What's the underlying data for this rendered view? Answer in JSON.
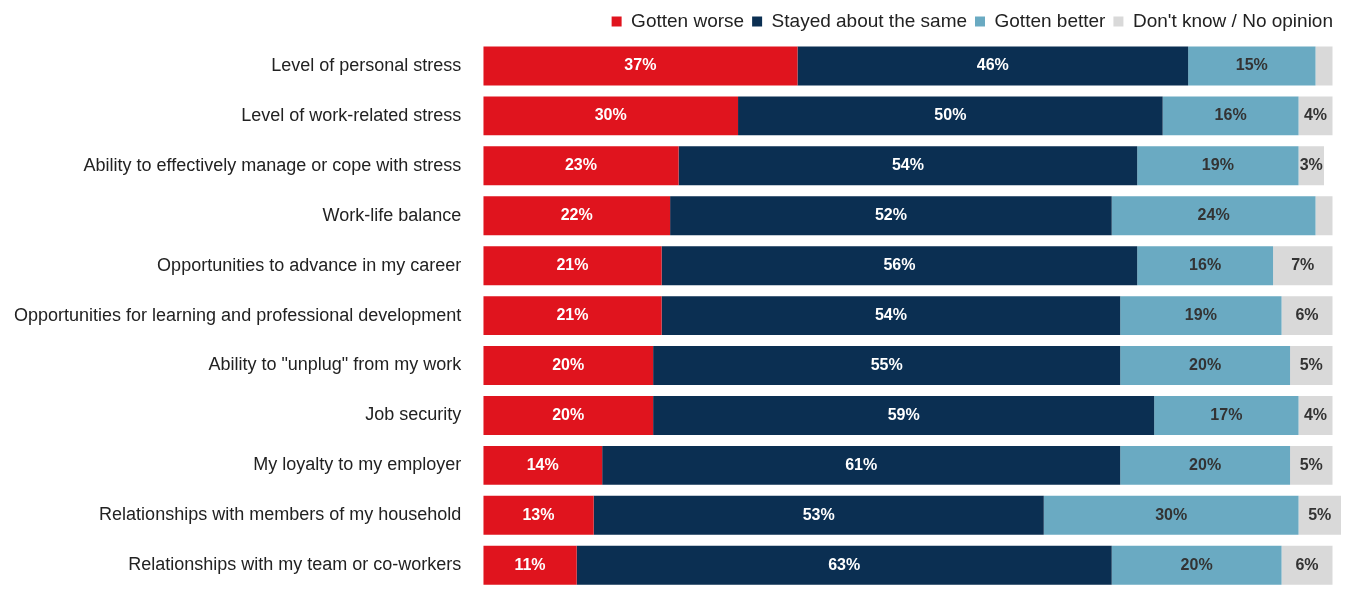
{
  "chart_data": {
    "type": "bar",
    "orientation": "horizontal",
    "stacked": true,
    "legend": "top right",
    "tick_labels": "y",
    "xlim": [
      0,
      101
    ],
    "categories": [
      "Level of personal stress",
      "Level of work-related stress",
      "Ability to effectively manage or cope with stress",
      "Work-life balance",
      "Opportunities to advance in my career",
      "Opportunities for learning and professional development",
      "Ability to \"unplug\" from my work",
      "Job security",
      "My loyalty to my employer",
      "Relationships with members of my household",
      "Relationships with my team or co-workers"
    ],
    "series": [
      {
        "name": "Gotten worse",
        "color": "#e0141e",
        "values": [
          37,
          30,
          23,
          22,
          21,
          21,
          20,
          20,
          14,
          13,
          11
        ],
        "value_labels": [
          "37%",
          "30%",
          "23%",
          "22%",
          "21%",
          "21%",
          "20%",
          "20%",
          "14%",
          "13%",
          "11%"
        ]
      },
      {
        "name": "Stayed about the same",
        "color": "#0b2f52",
        "values": [
          46,
          50,
          54,
          52,
          56,
          54,
          55,
          59,
          61,
          53,
          63
        ],
        "value_labels": [
          "46%",
          "50%",
          "54%",
          "52%",
          "56%",
          "54%",
          "55%",
          "59%",
          "61%",
          "53%",
          "63%"
        ]
      },
      {
        "name": "Gotten better",
        "color": "#6aaac2",
        "values": [
          15,
          16,
          19,
          24,
          16,
          19,
          20,
          17,
          20,
          30,
          20
        ],
        "value_labels": [
          "15%",
          "16%",
          "19%",
          "24%",
          "16%",
          "19%",
          "20%",
          "17%",
          "20%",
          "30%",
          "20%"
        ]
      },
      {
        "name": "Don't know / No opinion",
        "color": "#d9d9d9",
        "values": [
          2,
          4,
          3,
          2,
          7,
          6,
          5,
          4,
          5,
          5,
          6
        ],
        "value_labels": [
          null,
          "4%",
          "3%",
          null,
          "7%",
          "6%",
          "5%",
          "4%",
          "5%",
          "5%",
          "6%"
        ]
      }
    ]
  }
}
